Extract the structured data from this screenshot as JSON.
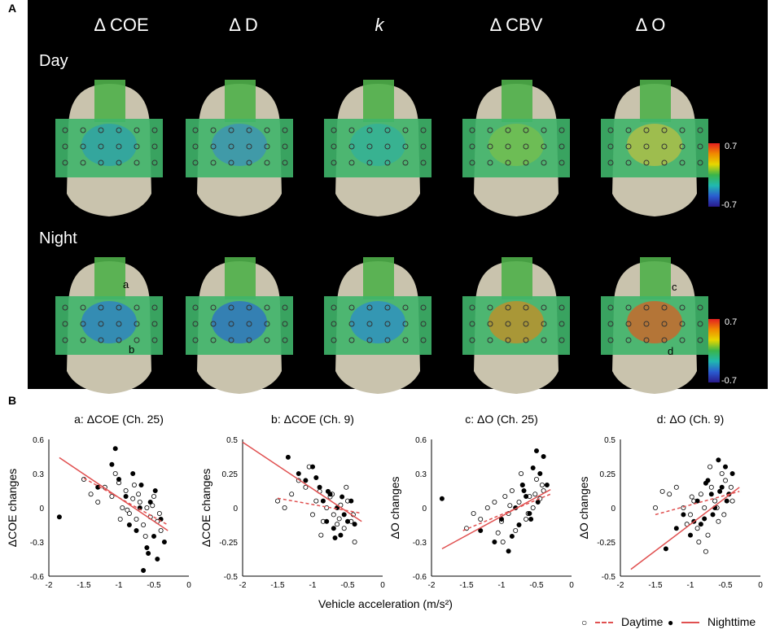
{
  "panel_a": {
    "label": "A",
    "columns": [
      "Δ COE",
      "Δ D",
      "k",
      "Δ CBV",
      "Δ O"
    ],
    "rows": [
      "Day",
      "Night"
    ],
    "colorbar_top": "0.7",
    "colorbar_bottom": "-0.7",
    "annotations": [
      "a",
      "b",
      "c",
      "d"
    ],
    "colors": {
      "background": "#000000",
      "scalp": "#c9c3ad",
      "low": "#2a1a8c",
      "high": "#e32020"
    }
  },
  "panel_b": {
    "label": "B",
    "xlabel": "Vehicle acceleration (m/s²)",
    "legend": {
      "day": "Daytime",
      "night": "Nighttime"
    }
  },
  "chart_data": [
    {
      "type": "scatter",
      "title": "a: ΔCOE (Ch. 25)",
      "ylabel": "ΔCOE changes",
      "xlim": [
        -2,
        0
      ],
      "ylim": [
        -0.6,
        0.6
      ],
      "xticks": [
        "-2",
        "-1.5",
        "-1",
        "-0.5",
        "0"
      ],
      "yticks": [
        "0.6",
        "0.3",
        "0",
        "-0.3",
        "-0.6"
      ],
      "day_fit": [
        [
          -1.5,
          0.26
        ],
        [
          -0.3,
          -0.15
        ]
      ],
      "night_fit": [
        [
          -1.85,
          0.44
        ],
        [
          -0.3,
          -0.2
        ]
      ],
      "series": [
        {
          "name": "Daytime",
          "x": [
            -1.5,
            -1.4,
            -1.3,
            -1.2,
            -1.1,
            -1.0,
            -0.95,
            -0.9,
            -0.85,
            -0.8,
            -0.75,
            -0.7,
            -0.65,
            -0.6,
            -0.55,
            -0.5,
            -0.45,
            -0.4,
            -1.05,
            -0.88,
            -0.72,
            -0.62,
            -0.52,
            -0.42,
            -0.98,
            -0.78
          ],
          "y": [
            0.25,
            0.12,
            0.05,
            0.18,
            0.1,
            0.22,
            0.0,
            0.15,
            -0.05,
            0.08,
            -0.1,
            0.05,
            -0.15,
            0.0,
            -0.08,
            0.1,
            -0.12,
            -0.2,
            0.3,
            -0.02,
            0.12,
            -0.25,
            0.02,
            -0.05,
            -0.1,
            0.2
          ]
        },
        {
          "name": "Nighttime",
          "x": [
            -1.85,
            -1.3,
            -1.1,
            -1.05,
            -1.0,
            -0.9,
            -0.8,
            -0.75,
            -0.7,
            -0.65,
            -0.6,
            -0.55,
            -0.5,
            -0.45,
            -0.4,
            -0.35,
            -0.85,
            -0.68,
            -0.58,
            -0.48
          ],
          "y": [
            -0.08,
            0.18,
            0.38,
            0.52,
            0.25,
            0.1,
            0.3,
            -0.2,
            0.0,
            -0.55,
            -0.35,
            0.05,
            -0.25,
            -0.45,
            -0.1,
            -0.3,
            -0.15,
            0.2,
            -0.4,
            0.15
          ]
        }
      ]
    },
    {
      "type": "scatter",
      "title": "b: ΔCOE (Ch. 9)",
      "ylabel": "ΔCOE changes",
      "xlim": [
        -2,
        0
      ],
      "ylim": [
        -0.5,
        0.5
      ],
      "xticks": [
        "-2",
        "-1.5",
        "-1",
        "-0.5",
        "0"
      ],
      "yticks": [
        "0.5",
        "0.25",
        "0",
        "-0.25",
        "-0.5"
      ],
      "day_fit": [
        [
          -1.5,
          0.07
        ],
        [
          -0.3,
          -0.04
        ]
      ],
      "night_fit": [
        [
          -2.0,
          0.48
        ],
        [
          -0.3,
          -0.1
        ]
      ],
      "series": [
        {
          "name": "Daytime",
          "x": [
            -1.5,
            -1.4,
            -1.3,
            -1.2,
            -1.1,
            -1.0,
            -0.95,
            -0.9,
            -0.85,
            -0.8,
            -0.75,
            -0.7,
            -0.65,
            -0.6,
            -0.55,
            -0.5,
            -0.45,
            -0.4,
            -1.05,
            -0.88,
            -0.72,
            -0.62,
            -0.52,
            -0.42
          ],
          "y": [
            0.05,
            0.0,
            0.1,
            0.2,
            0.15,
            -0.05,
            0.05,
            0.12,
            -0.1,
            0.0,
            0.08,
            -0.05,
            -0.12,
            0.02,
            -0.15,
            0.05,
            -0.1,
            -0.25,
            0.3,
            -0.2,
            0.1,
            -0.08,
            0.15,
            -0.05
          ]
        },
        {
          "name": "Nighttime",
          "x": [
            -1.35,
            -1.2,
            -1.1,
            -1.0,
            -0.9,
            -0.85,
            -0.8,
            -0.75,
            -0.7,
            -0.65,
            -0.6,
            -0.55,
            -0.5,
            -0.45,
            -0.4,
            -0.95,
            -0.78,
            -0.68,
            -0.58
          ],
          "y": [
            0.37,
            0.25,
            0.2,
            0.3,
            0.15,
            0.05,
            -0.1,
            0.1,
            -0.15,
            0.0,
            -0.2,
            -0.05,
            -0.1,
            0.05,
            -0.12,
            0.22,
            0.12,
            -0.22,
            0.08
          ]
        }
      ]
    },
    {
      "type": "scatter",
      "title": "c: ΔO (Ch. 25)",
      "ylabel": "ΔO changes",
      "xlim": [
        -2,
        0
      ],
      "ylim": [
        -0.6,
        0.6
      ],
      "xticks": [
        "-2",
        "-1.5",
        "-1",
        "-0.5",
        "0"
      ],
      "yticks": [
        "0.6",
        "0.3",
        "0",
        "-0.3",
        "-0.6"
      ],
      "day_fit": [
        [
          -1.55,
          -0.2
        ],
        [
          -0.3,
          0.12
        ]
      ],
      "night_fit": [
        [
          -1.85,
          -0.36
        ],
        [
          -0.3,
          0.16
        ]
      ],
      "series": [
        {
          "name": "Daytime",
          "x": [
            -1.5,
            -1.4,
            -1.3,
            -1.2,
            -1.1,
            -1.0,
            -0.95,
            -0.9,
            -0.85,
            -0.8,
            -0.75,
            -0.7,
            -0.65,
            -0.6,
            -0.55,
            -0.5,
            -0.45,
            -0.4,
            -1.05,
            -0.88,
            -0.72,
            -0.62,
            -0.52,
            -0.42,
            -0.98
          ],
          "y": [
            -0.18,
            -0.05,
            -0.1,
            0.0,
            0.05,
            -0.12,
            0.1,
            -0.05,
            0.15,
            -0.2,
            0.05,
            0.2,
            -0.1,
            0.1,
            0.0,
            0.25,
            0.08,
            0.15,
            -0.22,
            0.02,
            0.3,
            -0.05,
            0.12,
            0.2,
            -0.3
          ]
        },
        {
          "name": "Nighttime",
          "x": [
            -1.85,
            -1.3,
            -1.1,
            -1.0,
            -0.9,
            -0.8,
            -0.75,
            -0.7,
            -0.65,
            -0.6,
            -0.55,
            -0.5,
            -0.45,
            -0.4,
            -0.35,
            -0.85,
            -0.68,
            -0.58,
            -0.48
          ],
          "y": [
            0.08,
            -0.2,
            -0.3,
            -0.1,
            -0.38,
            0.0,
            -0.15,
            0.2,
            0.1,
            -0.05,
            0.35,
            0.5,
            0.3,
            0.45,
            0.2,
            -0.25,
            0.15,
            -0.1,
            0.05
          ]
        }
      ]
    },
    {
      "type": "scatter",
      "title": "d: ΔO (Ch. 9)",
      "ylabel": "ΔO changes",
      "xlim": [
        -2,
        0
      ],
      "ylim": [
        -0.5,
        0.5
      ],
      "xticks": [
        "-2",
        "-1.5",
        "-1",
        "-0.5",
        "0"
      ],
      "yticks": [
        "0.5",
        "0.25",
        "0",
        "-0.25",
        "-0.5"
      ],
      "day_fit": [
        [
          -1.5,
          -0.05
        ],
        [
          -0.3,
          0.12
        ]
      ],
      "night_fit": [
        [
          -1.85,
          -0.45
        ],
        [
          -0.3,
          0.15
        ]
      ],
      "series": [
        {
          "name": "Daytime",
          "x": [
            -1.5,
            -1.4,
            -1.3,
            -1.2,
            -1.1,
            -1.0,
            -0.95,
            -0.9,
            -0.85,
            -0.8,
            -0.75,
            -0.7,
            -0.65,
            -0.6,
            -0.55,
            -0.5,
            -0.45,
            -0.4,
            -1.05,
            -0.88,
            -0.72,
            -0.62,
            -0.52,
            -0.42,
            -0.98,
            -0.78
          ],
          "y": [
            0.0,
            0.12,
            0.1,
            0.15,
            0.0,
            -0.05,
            0.05,
            -0.15,
            0.1,
            0.0,
            -0.2,
            0.15,
            0.05,
            -0.1,
            0.25,
            0.2,
            0.1,
            0.05,
            -0.12,
            -0.25,
            0.3,
            0.0,
            -0.05,
            0.15,
            0.08,
            -0.32
          ]
        },
        {
          "name": "Nighttime",
          "x": [
            -1.35,
            -1.2,
            -1.1,
            -1.0,
            -0.9,
            -0.85,
            -0.8,
            -0.75,
            -0.7,
            -0.65,
            -0.6,
            -0.55,
            -0.5,
            -0.45,
            -0.4,
            -0.95,
            -0.78,
            -0.68,
            -0.58,
            -0.48
          ],
          "y": [
            -0.3,
            -0.15,
            -0.05,
            -0.2,
            0.05,
            -0.12,
            -0.08,
            0.2,
            0.1,
            0.0,
            0.35,
            0.15,
            0.3,
            0.1,
            0.25,
            -0.1,
            0.18,
            -0.05,
            0.12,
            0.05
          ]
        }
      ]
    }
  ]
}
